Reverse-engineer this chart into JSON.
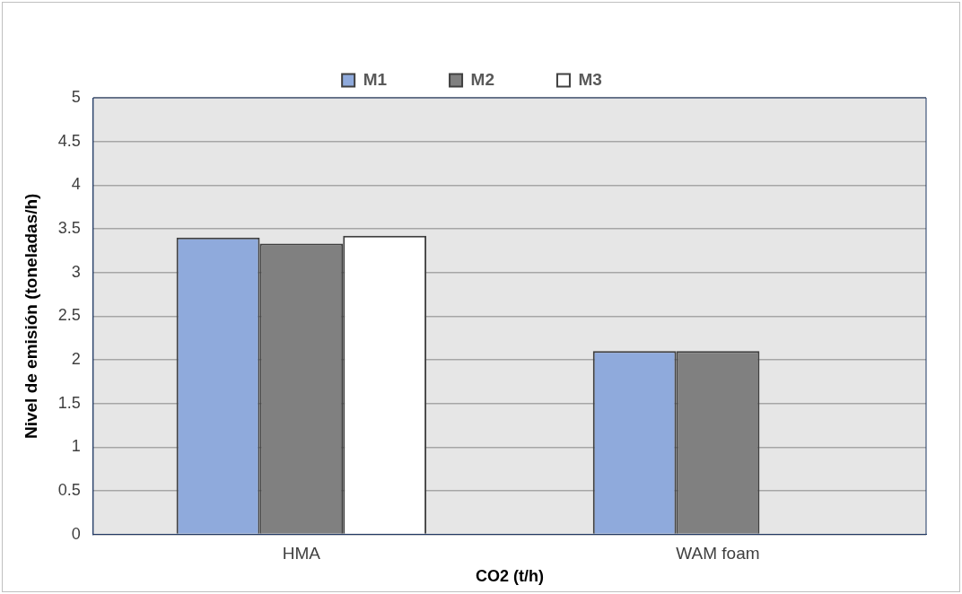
{
  "chart_data": {
    "type": "bar",
    "xlabel": "CO2 (t/h)",
    "ylabel": "Nivel de emisión (toneladas/h)",
    "categories": [
      "HMA",
      "WAM foam"
    ],
    "series": [
      {
        "name": "M1",
        "color": "#8faadc",
        "values": [
          3.4,
          2.1
        ]
      },
      {
        "name": "M2",
        "color": "#808080",
        "values": [
          3.33,
          2.1
        ]
      },
      {
        "name": "M3",
        "color": "#ffffff",
        "values": [
          3.42,
          null
        ]
      }
    ],
    "ylim": [
      0,
      5
    ],
    "yticks": [
      0,
      0.5,
      1,
      1.5,
      2,
      2.5,
      3,
      3.5,
      4,
      4.5,
      5
    ],
    "grid": "y",
    "legend": "top"
  }
}
